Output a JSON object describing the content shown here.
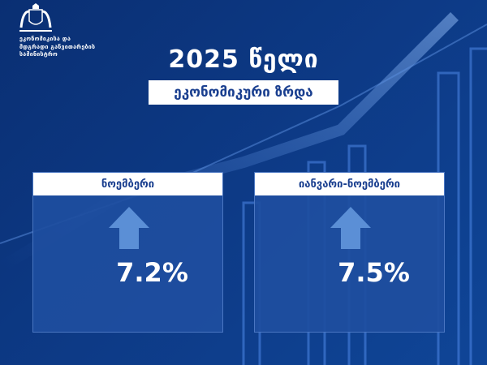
{
  "header": {
    "ministry_line1": "ეკონომიკისა და",
    "ministry_line2": "მდგრადი განვითარების",
    "ministry_line3": "სამინისტრო",
    "logo": "georgia-coat-of-arms"
  },
  "title": "2025 წელი",
  "subtitle": "ეკონომიკური ზრდა",
  "cards": [
    {
      "label": "ნოემბერი",
      "value": "7.2%",
      "icon": "arrow-up-icon"
    },
    {
      "label": "იანვარი-ნოემბერი",
      "value": "7.5%",
      "icon": "arrow-up-icon"
    }
  ],
  "colors": {
    "background": "#0d3a86",
    "card": "#1e4ea0",
    "arrow": "#5b8fd6",
    "label_text": "#1a3f8f"
  }
}
